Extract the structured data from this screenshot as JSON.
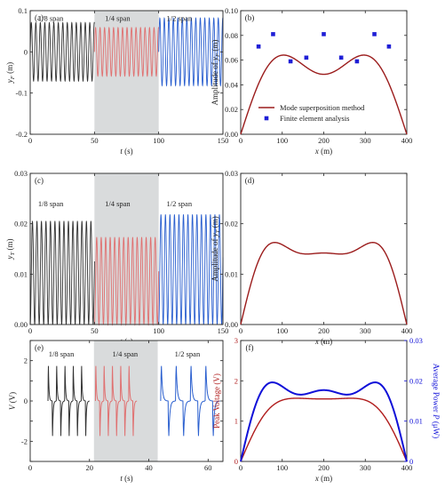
{
  "chart_data": [
    {
      "id": "a",
      "type": "line",
      "panel_label": "(a)",
      "xlabel": "t (s)",
      "ylabel": "y_F (m)",
      "xlim": [
        0,
        150
      ],
      "ylim": [
        -0.2,
        0.1
      ],
      "xticks": [
        0,
        50,
        100,
        150
      ],
      "yticks": [
        -0.2,
        -0.1,
        0.0,
        0.1
      ],
      "ytick_labels": [
        "-0.2",
        "-0.1",
        "0",
        "0.1"
      ],
      "shaded_region": [
        50,
        100
      ],
      "region_labels": [
        {
          "text": "1/8 span",
          "x": 16,
          "y": 0.075
        },
        {
          "text": "1/4 span",
          "x": 68,
          "y": 0.075
        },
        {
          "text": "1/2 span",
          "x": 116,
          "y": 0.075
        }
      ],
      "series": [
        {
          "t_range": [
            0,
            50
          ],
          "amplitude": 0.071,
          "period": 3.5,
          "color": "#333333"
        },
        {
          "t_range": [
            50,
            100
          ],
          "amplitude": 0.059,
          "period": 3.5,
          "color": "#e07070"
        },
        {
          "t_range": [
            100,
            150
          ],
          "amplitude": 0.082,
          "period": 3.5,
          "color": "#2a5fcf"
        }
      ]
    },
    {
      "id": "b",
      "type": "line",
      "panel_label": "(b)",
      "xlabel": "x (m)",
      "ylabel": "Amplitude of y_F (m)",
      "xlim": [
        0,
        400
      ],
      "ylim": [
        0,
        0.1
      ],
      "xticks": [
        0,
        100,
        200,
        300,
        400
      ],
      "yticks": [
        0.0,
        0.02,
        0.04,
        0.06,
        0.08,
        0.1
      ],
      "ytick_labels": [
        "0.00",
        "0.02",
        "0.04",
        "0.06",
        "0.08",
        "0.10"
      ],
      "legend": [
        "Mode superposition method",
        "Finite element analysis"
      ],
      "series": [
        {
          "name": "Mode superposition method",
          "color": "#9b1c1c",
          "profile": {
            "A1": 0.0695,
            "A3": 0.021,
            "A5": 0.0
          }
        },
        {
          "name": "Finite element analysis",
          "color": "#1f1fd6",
          "marker": "square",
          "points": [
            [
              43,
              0.071
            ],
            [
              78,
              0.081
            ],
            [
              120,
              0.059
            ],
            [
              158,
              0.062
            ],
            [
              200,
              0.081
            ],
            [
              242,
              0.062
            ],
            [
              280,
              0.059
            ],
            [
              322,
              0.081
            ],
            [
              357,
              0.071
            ]
          ]
        }
      ]
    },
    {
      "id": "c",
      "type": "line",
      "panel_label": "(c)",
      "xlabel": "t (s)",
      "ylabel": "y_T (m)",
      "xlim": [
        0,
        150
      ],
      "ylim": [
        0,
        0.03
      ],
      "xticks": [
        0,
        50,
        100,
        150
      ],
      "yticks": [
        0.0,
        0.01,
        0.02,
        0.03
      ],
      "ytick_labels": [
        "0.00",
        "0.01",
        "0.02",
        "0.03"
      ],
      "shaded_region": [
        50,
        100
      ],
      "region_labels": [
        {
          "text": "1/8 span",
          "x": 16,
          "y": 0.0235
        },
        {
          "text": "1/4 span",
          "x": 68,
          "y": 0.0235
        },
        {
          "text": "1/2 span",
          "x": 116,
          "y": 0.0235
        }
      ],
      "series": [
        {
          "t_range": [
            0,
            50
          ],
          "max": 0.0205,
          "period": 3.5,
          "color": "#333333"
        },
        {
          "t_range": [
            50,
            100
          ],
          "max": 0.0173,
          "period": 3.5,
          "color": "#e07070"
        },
        {
          "t_range": [
            100,
            150
          ],
          "max": 0.0218,
          "period": 3.5,
          "color": "#2a5fcf"
        }
      ]
    },
    {
      "id": "d",
      "type": "line",
      "panel_label": "(d)",
      "xlabel": "x (m)",
      "ylabel": "Amplitude of y_T (m)",
      "xlim": [
        0,
        400
      ],
      "ylim": [
        0,
        0.03
      ],
      "xticks": [
        0,
        100,
        200,
        300,
        400
      ],
      "yticks": [
        0.0,
        0.01,
        0.02,
        0.03
      ],
      "ytick_labels": [
        "0.00",
        "0.01",
        "0.02",
        "0.03"
      ],
      "series": [
        {
          "color": "#9b1c1c",
          "profile": {
            "A1": 0.0183,
            "A3": 0.0058,
            "A5": 0.0017
          }
        }
      ]
    },
    {
      "id": "e",
      "type": "line",
      "panel_label": "(e)",
      "xlabel": "t (s)",
      "ylabel": "V (V)",
      "xlim": [
        0,
        65
      ],
      "ylim": [
        -3,
        3
      ],
      "xticks": [
        0,
        20,
        40,
        60
      ],
      "yticks": [
        -3,
        -2,
        -1,
        0,
        1,
        2,
        3
      ],
      "ytick_labels": [
        "",
        "-2",
        "",
        "0",
        "",
        "2",
        ""
      ],
      "shaded_region": [
        21.5,
        43
      ],
      "region_labels": [
        {
          "text": "1/8 span",
          "x": 10.5,
          "y": 2.2
        },
        {
          "text": "1/4 span",
          "x": 32,
          "y": 2.2
        },
        {
          "text": "1/2 span",
          "x": 53,
          "y": 2.2
        }
      ],
      "series": [
        {
          "t_range": [
            6,
            20
          ],
          "n": 5,
          "color": "#333333"
        },
        {
          "t_range": [
            22,
            36
          ],
          "n": 5,
          "color": "#e07070"
        },
        {
          "t_range": [
            44,
            64
          ],
          "n": 4,
          "color": "#2a5fcf"
        }
      ]
    },
    {
      "id": "f",
      "type": "line",
      "panel_label": "(f)",
      "xlabel": "x (m)",
      "ylabel": "Peak Voltage (V)",
      "ylabel_right": "Average Power P (μW)",
      "xlim": [
        0,
        400
      ],
      "ylim": [
        0,
        3
      ],
      "ylim_right": [
        0,
        0.03
      ],
      "xticks": [
        0,
        100,
        200,
        300,
        400
      ],
      "yticks": [
        0,
        1,
        2,
        3
      ],
      "ytick_labels": [
        "0",
        "1",
        "2",
        "3"
      ],
      "yticks_right": [
        0.0,
        0.01,
        0.02,
        0.03
      ],
      "ytick_labels_right": [
        "0",
        "0.01",
        "0.02",
        "0.03"
      ],
      "series": [
        {
          "name": "Peak Voltage",
          "axis": "left",
          "color": "#b01c1c",
          "profile": {
            "A1": 1.85,
            "A3": 0.34,
            "A5": 0.04
          }
        },
        {
          "name": "Average Power",
          "axis": "right",
          "color": "#1010d8",
          "profile": {
            "A1": 0.022,
            "A3": 0.007,
            "A5": 0.0027
          }
        }
      ]
    }
  ]
}
